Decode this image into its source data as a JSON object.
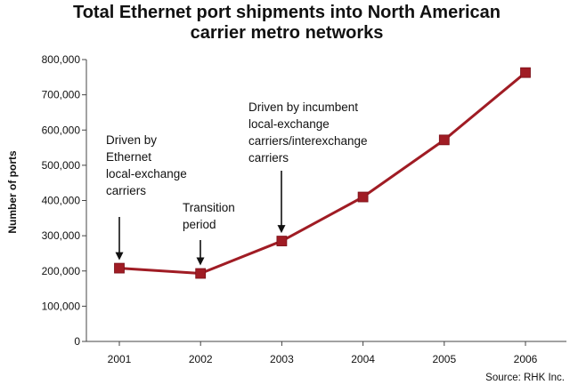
{
  "chart_data": {
    "type": "line",
    "title_lines": [
      "Total Ethernet port shipments into North American",
      "carrier metro networks"
    ],
    "ylabel": "Number of ports",
    "xlabel": "",
    "categories": [
      "2001",
      "2002",
      "2003",
      "2004",
      "2005",
      "2006"
    ],
    "series": [
      {
        "values": [
          208000,
          193000,
          285000,
          410000,
          572000,
          763000
        ]
      }
    ],
    "ylim": [
      0,
      800000
    ],
    "yticks": [
      "0",
      "100,000",
      "200,000",
      "300,000",
      "400,000",
      "500,000",
      "600,000",
      "700,000",
      "800,000"
    ],
    "line_color": "#a01c24",
    "marker_color": "#a01c24",
    "annotations": [
      {
        "lines": [
          "Driven by",
          "Ethernet",
          "local-exchange",
          "carriers"
        ],
        "target": "2001"
      },
      {
        "lines": [
          "Transition",
          "period"
        ],
        "target": "2002"
      },
      {
        "lines": [
          "Driven by incumbent",
          "local-exchange",
          "carriers/interexchange",
          "carriers"
        ],
        "target": "2003"
      }
    ],
    "source": "Source: RHK Inc.",
    "grid": false
  }
}
